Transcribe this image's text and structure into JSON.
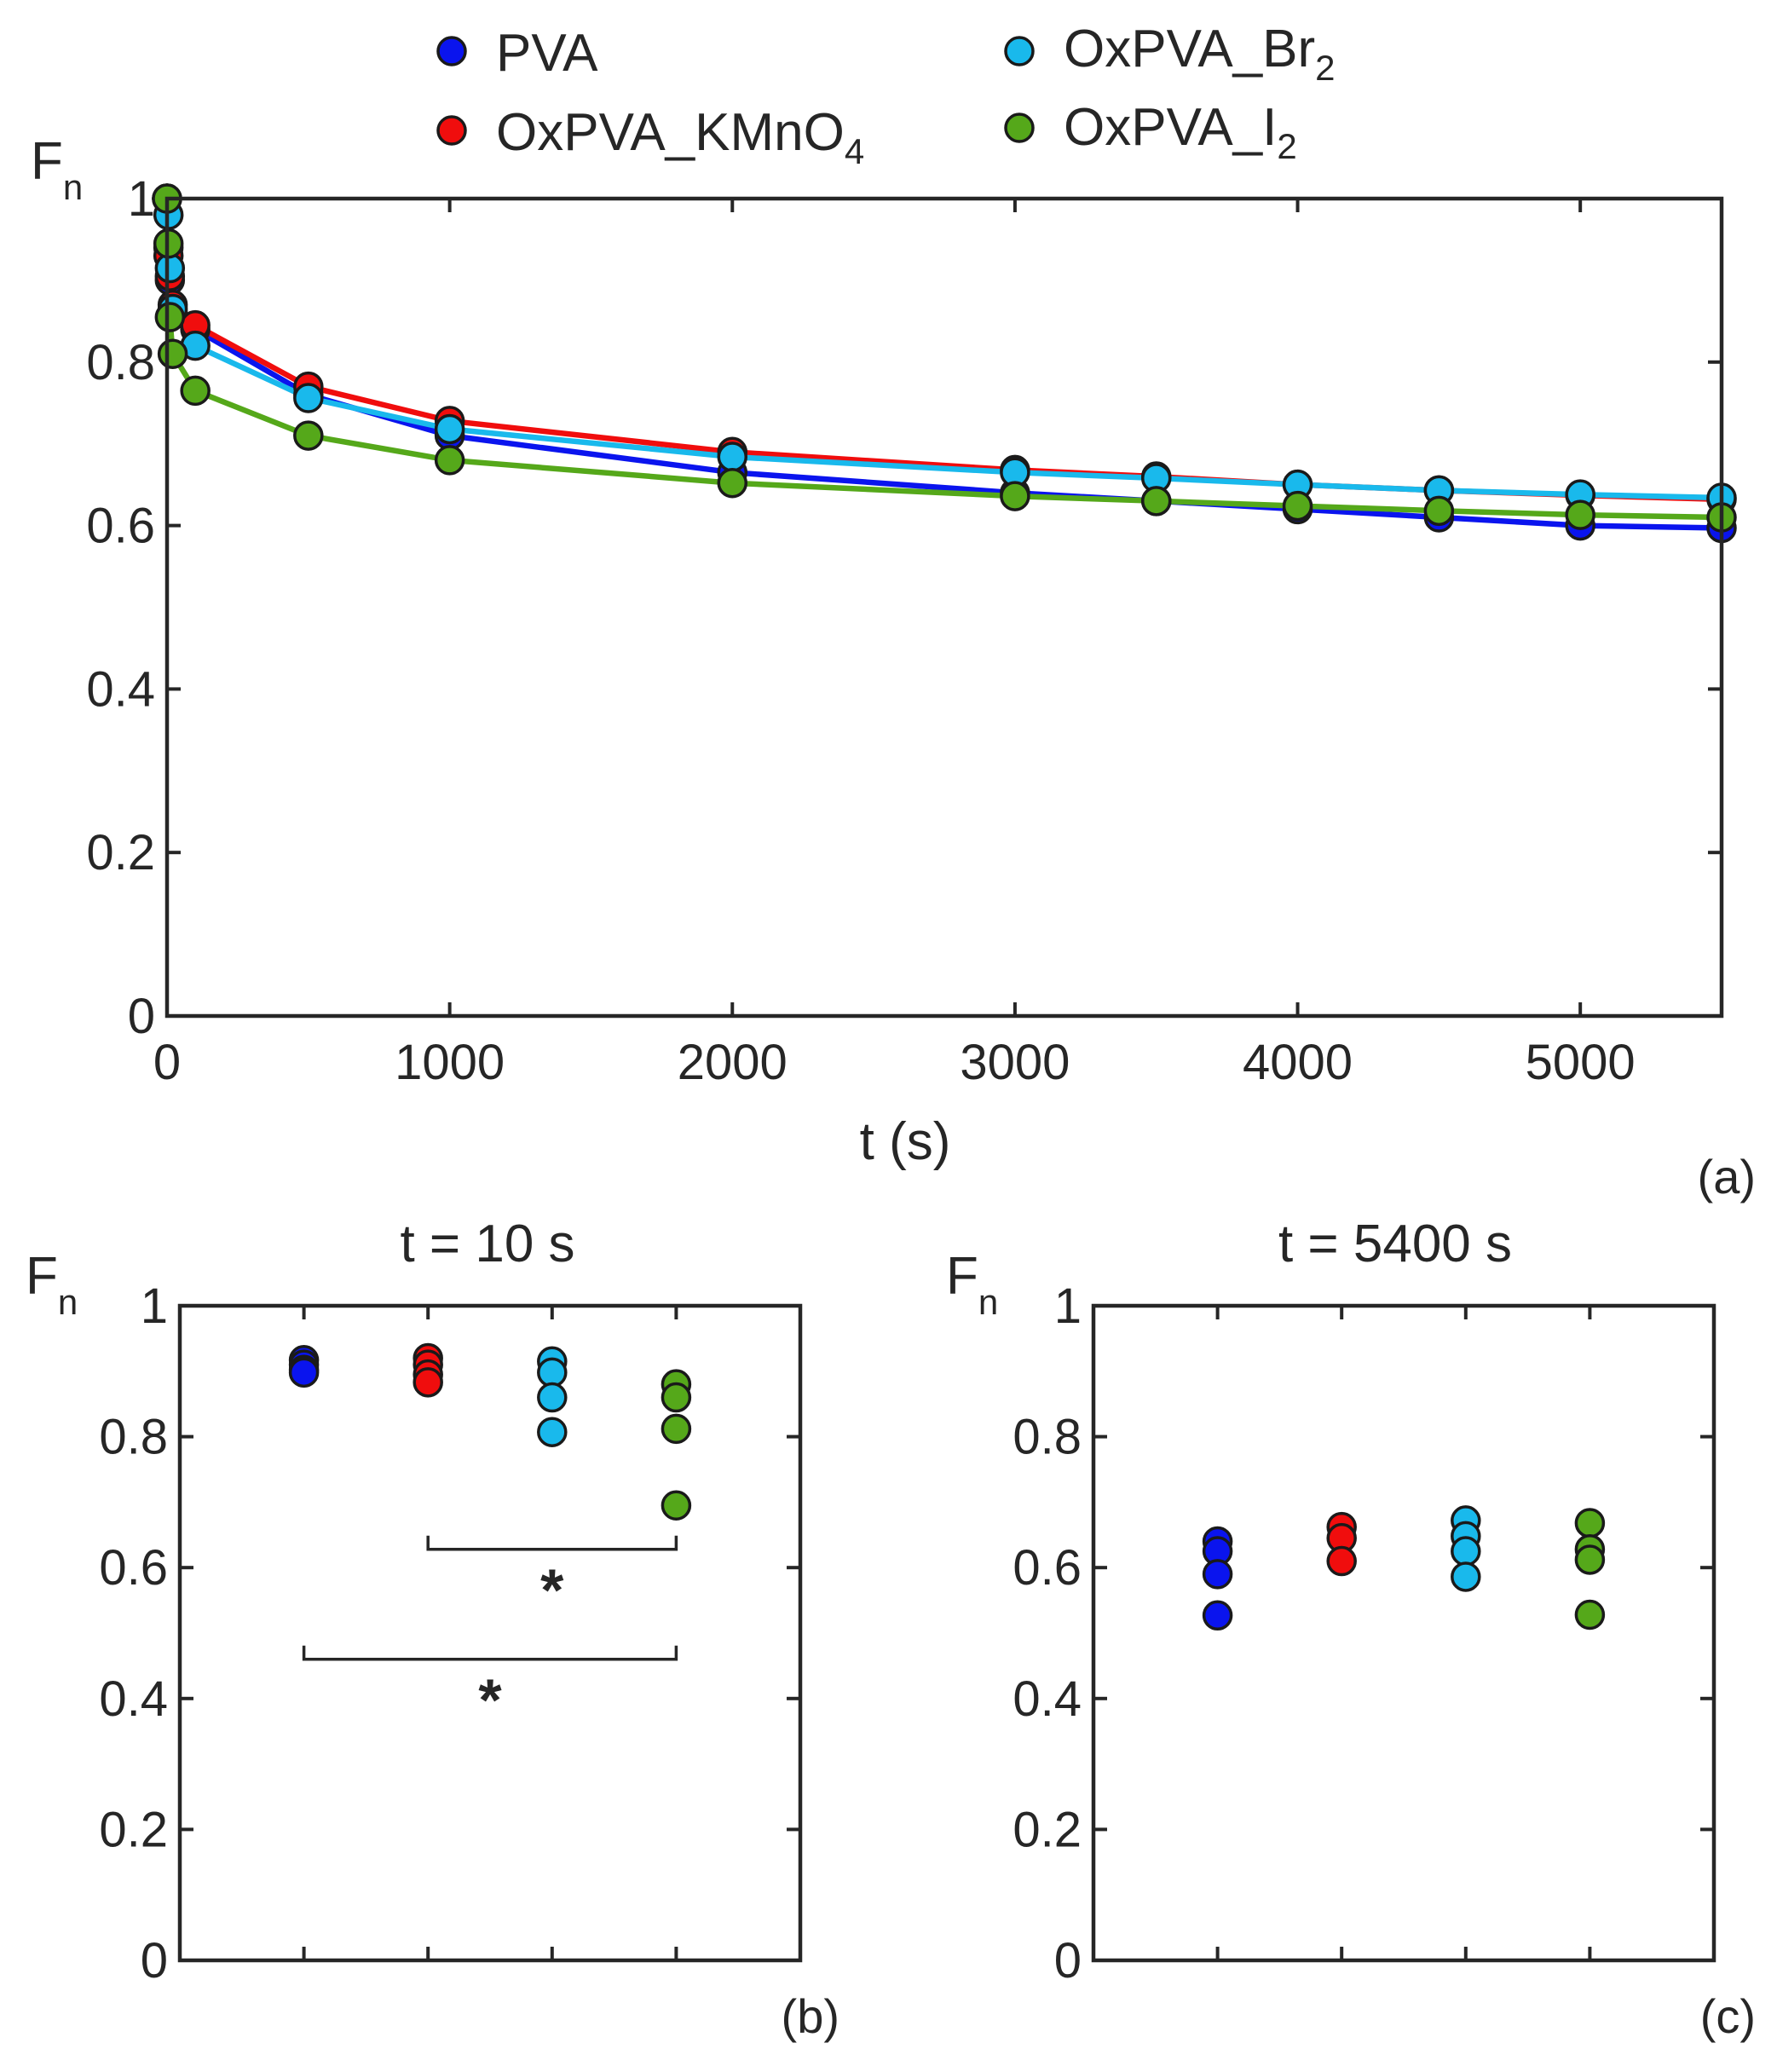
{
  "colors": {
    "PVA": "#0a14ee",
    "OxPVA_KMnO4": "#f00d0d",
    "OxPVA_Br2": "#19b9ec",
    "OxPVA_I2": "#55a81a"
  },
  "legend": {
    "pva": {
      "base": "PVA",
      "sub": ""
    },
    "kmno4": {
      "base": "OxPVA_KMnO",
      "sub": "4"
    },
    "br2": {
      "base": "OxPVA_Br",
      "sub": "2"
    },
    "i2": {
      "base": "OxPVA_I",
      "sub": "2"
    }
  },
  "chart_data": [
    {
      "id": "a",
      "type": "line",
      "tag": "(a)",
      "xlabel": "t (s)",
      "ylabel": {
        "base": "F",
        "sub": "n"
      },
      "xlim": [
        0,
        5500
      ],
      "ylim": [
        0,
        1
      ],
      "xticks": [
        0,
        1000,
        2000,
        3000,
        4000,
        5000
      ],
      "xtick_labels": [
        "0",
        "1000",
        "2000",
        "3000",
        "4000",
        "5000"
      ],
      "yticks": [
        0,
        0.2,
        0.4,
        0.6,
        0.8,
        1
      ],
      "ytick_labels": [
        "0",
        "0.2",
        "0.4",
        "0.6",
        "0.8",
        "1"
      ],
      "series": [
        {
          "name": "PVA",
          "key": "PVA",
          "x": [
            0,
            5,
            10,
            20,
            100,
            500,
            1000,
            2000,
            3000,
            3500,
            4000,
            4500,
            5000,
            5500
          ],
          "y": [
            1.0,
            0.94,
            0.9,
            0.86,
            0.84,
            0.76,
            0.71,
            0.665,
            0.64,
            0.63,
            0.62,
            0.61,
            0.6,
            0.597
          ]
        },
        {
          "name": "OxPVA_KMnO4",
          "key": "OxPVA_KMnO4",
          "x": [
            0,
            5,
            10,
            20,
            100,
            500,
            1000,
            2000,
            3000,
            3500,
            4000,
            4500,
            5000,
            5500
          ],
          "y": [
            1.0,
            0.93,
            0.905,
            0.87,
            0.845,
            0.77,
            0.728,
            0.69,
            0.668,
            0.66,
            0.65,
            0.643,
            0.637,
            0.632
          ]
        },
        {
          "name": "OxPVA_Br2",
          "key": "OxPVA_Br2",
          "x": [
            0,
            5,
            10,
            20,
            100,
            500,
            1000,
            2000,
            3000,
            3500,
            4000,
            4500,
            5000,
            5500
          ],
          "y": [
            1.0,
            0.98,
            0.915,
            0.865,
            0.82,
            0.756,
            0.718,
            0.684,
            0.665,
            0.658,
            0.65,
            0.643,
            0.638,
            0.634
          ]
        },
        {
          "name": "OxPVA_I2",
          "key": "OxPVA_I2",
          "x": [
            0,
            5,
            10,
            20,
            100,
            500,
            1000,
            2000,
            3000,
            3500,
            4000,
            4500,
            5000,
            5500
          ],
          "y": [
            1.0,
            0.945,
            0.855,
            0.81,
            0.765,
            0.71,
            0.68,
            0.652,
            0.636,
            0.63,
            0.624,
            0.618,
            0.613,
            0.61
          ]
        }
      ]
    },
    {
      "id": "b",
      "type": "scatter",
      "tag": "(b)",
      "title": "t = 10 s",
      "ylabel": {
        "base": "F",
        "sub": "n"
      },
      "xlim": [
        0,
        5
      ],
      "ylim": [
        0,
        1
      ],
      "yticks": [
        0,
        0.2,
        0.4,
        0.6,
        0.8,
        1
      ],
      "ytick_labels": [
        "0",
        "0.2",
        "0.4",
        "0.6",
        "0.8",
        "1"
      ],
      "xticks": [
        1,
        2,
        3,
        4
      ],
      "groups": [
        {
          "key": "PVA",
          "x": 1,
          "values": [
            0.917,
            0.91,
            0.902,
            0.898
          ]
        },
        {
          "key": "OxPVA_KMnO4",
          "x": 2,
          "values": [
            0.92,
            0.91,
            0.895,
            0.883
          ]
        },
        {
          "key": "OxPVA_Br2",
          "x": 3,
          "values": [
            0.915,
            0.898,
            0.86,
            0.807
          ]
        },
        {
          "key": "OxPVA_I2",
          "x": 4,
          "values": [
            0.88,
            0.86,
            0.812,
            0.695
          ]
        }
      ],
      "significance": [
        {
          "from": 2,
          "to": 4,
          "y": 0.628,
          "label": "*"
        },
        {
          "from": 1,
          "to": 4,
          "y": 0.46,
          "label": "*"
        }
      ]
    },
    {
      "id": "c",
      "type": "scatter",
      "tag": "(c)",
      "title": "t = 5400 s",
      "ylabel": {
        "base": "F",
        "sub": "n"
      },
      "xlim": [
        0,
        5
      ],
      "ylim": [
        0,
        1
      ],
      "yticks": [
        0,
        0.2,
        0.4,
        0.6,
        0.8,
        1
      ],
      "ytick_labels": [
        "0",
        "0.2",
        "0.4",
        "0.6",
        "0.8",
        "1"
      ],
      "xticks": [
        1,
        2,
        3,
        4
      ],
      "groups": [
        {
          "key": "PVA",
          "x": 1,
          "values": [
            0.64,
            0.625,
            0.59,
            0.527
          ]
        },
        {
          "key": "OxPVA_KMnO4",
          "x": 2,
          "values": [
            0.662,
            0.645,
            0.61
          ]
        },
        {
          "key": "OxPVA_Br2",
          "x": 3,
          "values": [
            0.672,
            0.648,
            0.625,
            0.586
          ]
        },
        {
          "key": "OxPVA_I2",
          "x": 4,
          "values": [
            0.668,
            0.628,
            0.612,
            0.528
          ]
        }
      ],
      "significance": []
    }
  ]
}
